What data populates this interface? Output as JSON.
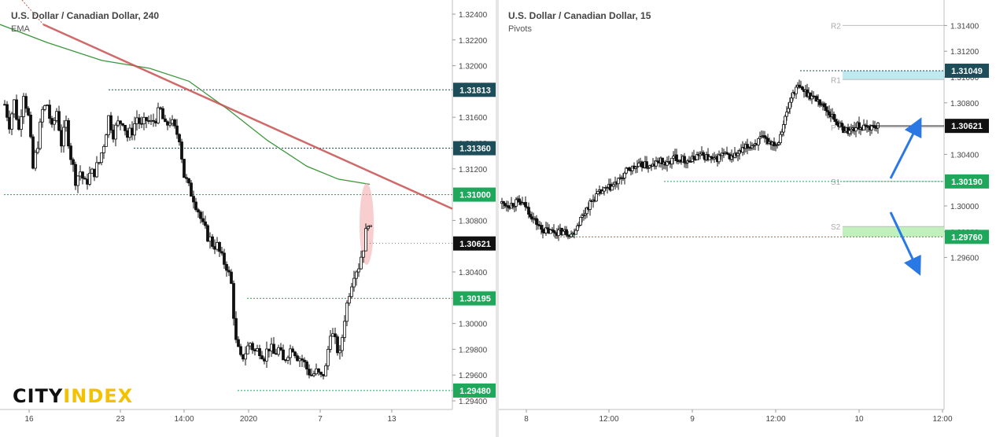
{
  "colors": {
    "green": "#1fa85b",
    "teal": "#1e4d5a",
    "black": "#111111",
    "trend": "#c85050",
    "ema": "#3c963c",
    "blue": "#2a78e4"
  },
  "left": {
    "title": "U.S. Dollar / Canadian Dollar, 240",
    "indicator": "EMA",
    "logo_a": "CITY",
    "logo_b": "INDEX",
    "chart_data": {
      "type": "candlestick",
      "y_ticks": [
        "1.32400",
        "1.32200",
        "1.32000",
        "1.31600",
        "1.31200",
        "1.30800",
        "1.30400",
        "1.30000",
        "1.29800",
        "1.29600",
        "1.29400"
      ],
      "partial_tick": "1.31400",
      "x_ticks": [
        "16",
        "23",
        "14:00",
        "2020",
        "7",
        "13"
      ],
      "price_labels": [
        {
          "text": "1.31813",
          "value": 1.31813,
          "color": "teal"
        },
        {
          "text": "1.31360",
          "value": 1.3136,
          "color": "teal"
        },
        {
          "text": "1.31000",
          "value": 1.31,
          "color": "green"
        },
        {
          "text": "1.30621",
          "value": 1.30621,
          "color": "black"
        },
        {
          "text": "1.30195",
          "value": 1.30195,
          "color": "green"
        },
        {
          "text": "1.29480",
          "value": 1.2948,
          "color": "green"
        }
      ],
      "ema": [
        [
          0,
          1.3232
        ],
        [
          60,
          1.3218
        ],
        [
          130,
          1.3204
        ],
        [
          190,
          1.3198
        ],
        [
          240,
          1.3188
        ],
        [
          290,
          1.3166
        ],
        [
          340,
          1.3142
        ],
        [
          390,
          1.3122
        ],
        [
          430,
          1.3112
        ],
        [
          470,
          1.3108
        ]
      ],
      "trendline": [
        [
          55,
          1.3232
        ],
        [
          575,
          1.3089
        ]
      ],
      "ohlc_path": [
        [
          6,
          1.317
        ],
        [
          12,
          1.3155
        ],
        [
          18,
          1.3172
        ],
        [
          24,
          1.315
        ],
        [
          30,
          1.318
        ],
        [
          36,
          1.316
        ],
        [
          42,
          1.312
        ],
        [
          48,
          1.314
        ],
        [
          54,
          1.3165
        ],
        [
          60,
          1.317
        ],
        [
          66,
          1.315
        ],
        [
          72,
          1.3165
        ],
        [
          78,
          1.314
        ],
        [
          84,
          1.3155
        ],
        [
          90,
          1.313
        ],
        [
          96,
          1.3112
        ],
        [
          102,
          1.3118
        ],
        [
          108,
          1.3108
        ],
        [
          114,
          1.3115
        ],
        [
          120,
          1.3118
        ],
        [
          126,
          1.3125
        ],
        [
          132,
          1.314
        ],
        [
          138,
          1.316
        ],
        [
          144,
          1.3148
        ],
        [
          150,
          1.3155
        ],
        [
          156,
          1.3158
        ],
        [
          162,
          1.3145
        ],
        [
          168,
          1.315
        ],
        [
          174,
          1.316
        ],
        [
          180,
          1.3152
        ],
        [
          186,
          1.3158
        ],
        [
          192,
          1.3155
        ],
        [
          198,
          1.316
        ],
        [
          204,
          1.3165
        ],
        [
          210,
          1.3152
        ],
        [
          216,
          1.3158
        ],
        [
          222,
          1.315
        ],
        [
          228,
          1.3145
        ],
        [
          234,
          1.3115
        ],
        [
          240,
          1.3105
        ],
        [
          246,
          1.3098
        ],
        [
          252,
          1.3088
        ],
        [
          258,
          1.3075
        ],
        [
          264,
          1.3068
        ],
        [
          270,
          1.3062
        ],
        [
          276,
          1.306
        ],
        [
          282,
          1.305
        ],
        [
          288,
          1.3045
        ],
        [
          294,
          1.303
        ],
        [
          300,
          1.2985
        ],
        [
          306,
          1.2972
        ],
        [
          312,
          1.2978
        ],
        [
          318,
          1.2985
        ],
        [
          324,
          1.2978
        ],
        [
          330,
          1.298
        ],
        [
          336,
          1.2975
        ],
        [
          342,
          1.2982
        ],
        [
          348,
          1.2976
        ],
        [
          354,
          1.298
        ],
        [
          360,
          1.297
        ],
        [
          366,
          1.2978
        ],
        [
          372,
          1.2982
        ],
        [
          378,
          1.2975
        ],
        [
          384,
          1.2972
        ],
        [
          390,
          1.2965
        ],
        [
          396,
          1.296
        ],
        [
          402,
          1.2962
        ],
        [
          408,
          1.2958
        ],
        [
          414,
          1.2965
        ],
        [
          420,
          1.2995
        ],
        [
          426,
          1.2985
        ],
        [
          432,
          1.2975
        ],
        [
          438,
          1.3005
        ],
        [
          444,
          1.3025
        ],
        [
          450,
          1.304
        ],
        [
          456,
          1.3045
        ],
        [
          462,
          1.306
        ],
        [
          468,
          1.308
        ],
        [
          474,
          1.3062
        ]
      ]
    }
  },
  "right": {
    "title": "U.S. Dollar / Canadian Dollar, 15",
    "indicator": "Pivots",
    "chart_data": {
      "type": "candlestick",
      "y_ticks": [
        "1.31400",
        "1.31200",
        "1.31000",
        "1.30800",
        "1.30400",
        "1.30000",
        "1.29800",
        "1.29600"
      ],
      "x_ticks": [
        "8",
        "12:00",
        "9",
        "12:00",
        "10",
        "12:00"
      ],
      "pivots": [
        {
          "name": "R2",
          "value": 1.314
        },
        {
          "name": "R1",
          "value": 1.3098
        },
        {
          "name": "P",
          "value": 1.3061
        },
        {
          "name": "S1",
          "value": 1.3019
        },
        {
          "name": "S2",
          "value": 1.2984
        }
      ],
      "price_labels": [
        {
          "text": "1.31049",
          "value": 1.31049,
          "color": "teal"
        },
        {
          "text": "1.30621",
          "value": 1.30621,
          "color": "black"
        },
        {
          "text": "1.30190",
          "value": 1.3019,
          "color": "green"
        },
        {
          "text": "1.29760",
          "value": 1.2976,
          "color": "green"
        }
      ],
      "ohlc_path": [
        [
          4,
          1.3002
        ],
        [
          14,
          1.3001
        ],
        [
          24,
          1.3003
        ],
        [
          34,
          1.3
        ],
        [
          44,
          1.299
        ],
        [
          54,
          1.2982
        ],
        [
          64,
          1.298
        ],
        [
          74,
          1.298
        ],
        [
          84,
          1.298
        ],
        [
          94,
          1.2978
        ],
        [
          104,
          1.299
        ],
        [
          114,
          1.3
        ],
        [
          124,
          1.3008
        ],
        [
          134,
          1.3012
        ],
        [
          144,
          1.3015
        ],
        [
          154,
          1.302
        ],
        [
          164,
          1.3028
        ],
        [
          174,
          1.303
        ],
        [
          184,
          1.3032
        ],
        [
          194,
          1.303
        ],
        [
          204,
          1.3035
        ],
        [
          214,
          1.3032
        ],
        [
          224,
          1.3038
        ],
        [
          234,
          1.3036
        ],
        [
          244,
          1.3035
        ],
        [
          254,
          1.304
        ],
        [
          264,
          1.3038
        ],
        [
          274,
          1.3035
        ],
        [
          284,
          1.304
        ],
        [
          294,
          1.3038
        ],
        [
          304,
          1.304
        ],
        [
          314,
          1.3045
        ],
        [
          324,
          1.3048
        ],
        [
          334,
          1.3052
        ],
        [
          344,
          1.305
        ],
        [
          354,
          1.3048
        ],
        [
          364,
          1.3068
        ],
        [
          374,
          1.3088
        ],
        [
          380,
          1.3092
        ],
        [
          386,
          1.309
        ],
        [
          396,
          1.3086
        ],
        [
          406,
          1.3082
        ],
        [
          416,
          1.3075
        ],
        [
          426,
          1.3068
        ],
        [
          436,
          1.306
        ],
        [
          446,
          1.3058
        ],
        [
          456,
          1.3062
        ],
        [
          466,
          1.306
        ],
        [
          476,
          1.3062
        ],
        [
          484,
          1.3061
        ]
      ]
    }
  }
}
